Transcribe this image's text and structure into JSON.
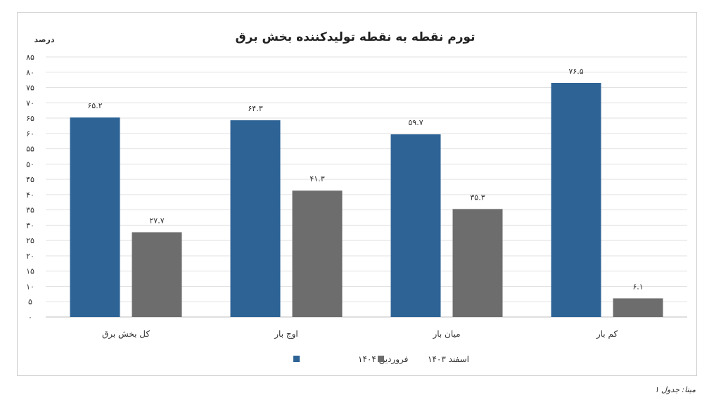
{
  "chart_data": {
    "type": "bar",
    "title": "تورم نقطه به نقطه تولیدکننده بخش برق",
    "ylabel": "درصد",
    "xlabel": "",
    "ylim": [
      0,
      85
    ],
    "yticks": [
      0,
      5,
      10,
      15,
      20,
      25,
      30,
      35,
      40,
      45,
      50,
      55,
      60,
      65,
      70,
      75,
      80,
      85
    ],
    "ytick_labels": [
      "۰",
      "۵",
      "۱۰",
      "۱۵",
      "۲۰",
      "۲۵",
      "۳۰",
      "۳۵",
      "۴۰",
      "۴۵",
      "۵۰",
      "۵۵",
      "۶۰",
      "۶۵",
      "۷۰",
      "۷۵",
      "۸۰",
      "۸۵"
    ],
    "grid": true,
    "legend_position": "bottom",
    "categories": [
      "کل بخش برق",
      "اوج بار",
      "میان بار",
      "کم بار"
    ],
    "series": [
      {
        "name": "فروردین ۱۴۰۴",
        "color": "#2e6396",
        "values": [
          65.2,
          64.3,
          59.7,
          76.5
        ],
        "labels": [
          "۶۵.۲",
          "۶۴.۳",
          "۵۹.۷",
          "۷۶.۵"
        ]
      },
      {
        "name": "اسفند ۱۴۰۳",
        "color": "#6d6d6d",
        "values": [
          27.7,
          41.3,
          35.3,
          6.1
        ],
        "labels": [
          "۲۷.۷",
          "۴۱.۳",
          "۳۵.۳",
          "۶.۱"
        ]
      }
    ]
  },
  "source_note": "مبنا: جدول ۱"
}
